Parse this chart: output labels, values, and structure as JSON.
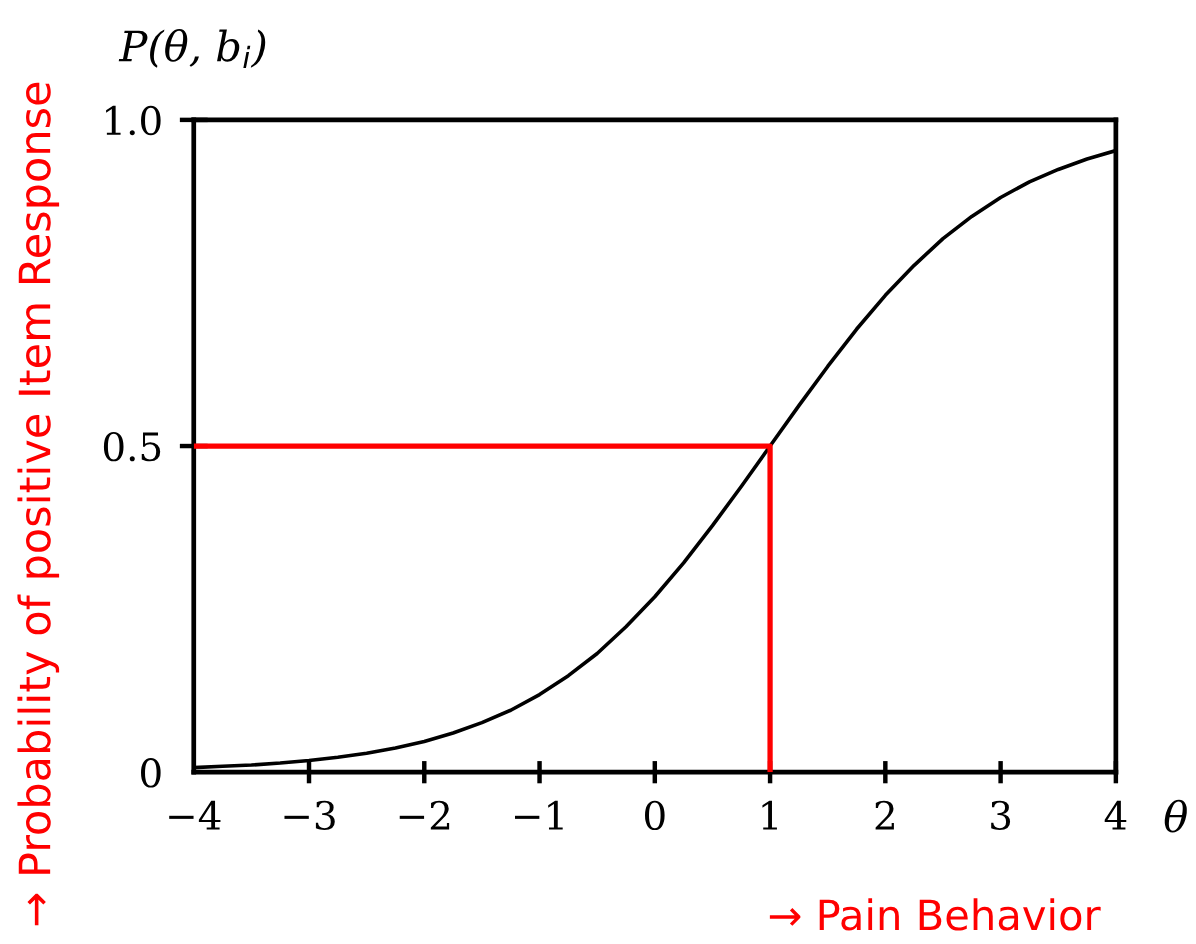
{
  "chart_data": {
    "type": "line",
    "ylabel": "P(θ, b$_{i}$)",
    "xlabel": "θ",
    "annotations": [
      "→ Probability of positive Item Response",
      "→ Pain Behavior"
    ],
    "series": [
      {
        "color": "#000000",
        "x": [
          -4,
          -3.75,
          -3.5,
          -3.25,
          -3,
          -2.75,
          -2.5,
          -2.25,
          -2,
          -1.75,
          -1.5,
          -1.25,
          -1,
          -0.75,
          -0.5,
          -0.25,
          0,
          0.25,
          0.5,
          0.75,
          1,
          1.25,
          1.5,
          1.75,
          2,
          2.25,
          2.5,
          2.75,
          3,
          3.25,
          3.5,
          3.75,
          4
        ],
        "values": [
          0.007,
          0.009,
          0.011,
          0.014,
          0.018,
          0.023,
          0.029,
          0.037,
          0.047,
          0.06,
          0.076,
          0.095,
          0.119,
          0.148,
          0.182,
          0.223,
          0.269,
          0.321,
          0.378,
          0.438,
          0.5,
          0.562,
          0.622,
          0.679,
          0.731,
          0.777,
          0.818,
          0.852,
          0.881,
          0.905,
          0.924,
          0.94,
          0.953
        ]
      },
      {
        "color": "#ff0000",
        "x": [
          -4,
          1,
          1
        ],
        "values": [
          0.5,
          0.5,
          0
        ]
      }
    ],
    "xlim": [
      -4,
      4
    ],
    "ylim": [
      0,
      1
    ],
    "xticks": [
      {
        "value": -4,
        "label": "−4"
      },
      {
        "value": -3,
        "label": "−3"
      },
      {
        "value": -2,
        "label": "−2"
      },
      {
        "value": -1,
        "label": "−1"
      },
      0,
      1,
      2,
      3,
      4
    ],
    "yticks": [
      0,
      0.5,
      {
        "value": 1,
        "label": "1.0"
      }
    ],
    "grid": false
  }
}
